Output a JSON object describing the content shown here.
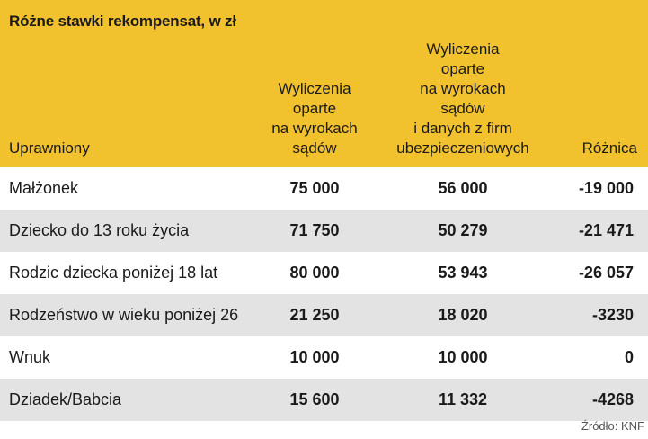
{
  "title": "Różne stawki rekompensat, w zł",
  "headers": {
    "uprawniony": "Uprawniony",
    "col1": [
      "Wyliczenia",
      "oparte",
      "na wyrokach",
      "sądów"
    ],
    "col2": [
      "Wyliczenia",
      "oparte",
      "na wyrokach",
      "sądów",
      "i danych z firm",
      "ubezpieczeniowych"
    ],
    "col3": "Różnica"
  },
  "rows": [
    {
      "name": "Małżonek",
      "v1": "75 000",
      "v2": "56 000",
      "diff": "-19 000"
    },
    {
      "name": "Dziecko do 13 roku życia",
      "v1": "71 750",
      "v2": "50 279",
      "diff": "-21 471"
    },
    {
      "name": "Rodzic dziecka poniżej 18 lat",
      "v1": "80 000",
      "v2": "53 943",
      "diff": "-26 057"
    },
    {
      "name": "Rodzeństwo w wieku poniżej 26",
      "v1": "21 250",
      "v2": "18 020",
      "diff": "-3230"
    },
    {
      "name": "Wnuk",
      "v1": "10 000",
      "v2": "10 000",
      "diff": "0"
    },
    {
      "name": "Dziadek/Babcia",
      "v1": "15 600",
      "v2": "11 332",
      "diff": "-4268"
    }
  ],
  "source": "Źródło: KNF",
  "colors": {
    "header_bg": "#f2c12e",
    "shade_row": "#e3e3e3"
  }
}
